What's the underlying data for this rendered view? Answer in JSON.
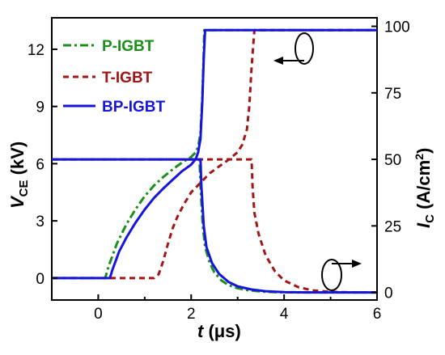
{
  "chart_data": {
    "type": "line",
    "x_label": {
      "symbol": "t",
      "unit": " (μs)"
    },
    "y_left_label": {
      "symbol": "V",
      "subscript": "CE",
      "unit": " (kV)"
    },
    "y_right_label": {
      "symbol": "I",
      "subscript": "C",
      "unit": " (A/cm",
      "superscript": "2",
      "close": ")"
    },
    "x_range": [
      -1,
      6
    ],
    "y_left_range": [
      -1.15,
      13.65
    ],
    "y_right_range": [
      -2.85,
      103.2
    ],
    "x_ticks": [
      0,
      2,
      4,
      6
    ],
    "x_tick_labels": [
      "0",
      "2",
      "4",
      "6"
    ],
    "y_left_ticks": [
      0,
      3,
      6,
      9,
      12
    ],
    "y_left_tick_labels": [
      "0",
      "3",
      "6",
      "9",
      "12"
    ],
    "y_right_ticks": [
      0,
      25,
      50,
      75,
      100
    ],
    "y_right_tick_labels": [
      "0",
      "25",
      "50",
      "75",
      "100"
    ],
    "grid": false,
    "legend_position": "top-left",
    "series": [
      {
        "name": "P-IGBT",
        "color": "#1a8f1a",
        "dash": "dashdot",
        "vce": [
          [
            -1,
            0
          ],
          [
            0.15,
            0
          ],
          [
            0.22,
            0.6
          ],
          [
            0.4,
            1.8
          ],
          [
            0.6,
            2.8
          ],
          [
            0.8,
            3.6
          ],
          [
            1.0,
            4.3
          ],
          [
            1.2,
            4.85
          ],
          [
            1.4,
            5.3
          ],
          [
            1.6,
            5.7
          ],
          [
            1.8,
            6.05
          ],
          [
            2.0,
            6.35
          ],
          [
            2.1,
            6.6
          ],
          [
            2.15,
            6.9
          ],
          [
            2.2,
            7.6
          ],
          [
            2.24,
            9.5
          ],
          [
            2.27,
            11.8
          ],
          [
            2.28,
            13.0
          ],
          [
            6,
            13.0
          ]
        ],
        "ic": [
          [
            -1,
            50
          ],
          [
            2.18,
            50
          ],
          [
            2.2,
            40
          ],
          [
            2.25,
            25
          ],
          [
            2.3,
            17
          ],
          [
            2.4,
            11
          ],
          [
            2.5,
            7.5
          ],
          [
            2.65,
            4.5
          ],
          [
            2.8,
            2.8
          ],
          [
            3.0,
            1.6
          ],
          [
            3.2,
            0.9
          ],
          [
            3.5,
            0.35
          ],
          [
            3.8,
            0.1
          ],
          [
            4.3,
            0
          ],
          [
            6,
            0
          ]
        ]
      },
      {
        "name": "T-IGBT",
        "color": "#a31515",
        "dash": "dashed",
        "vce": [
          [
            -1,
            0
          ],
          [
            1.2,
            0
          ],
          [
            1.3,
            0.2
          ],
          [
            1.4,
            0.9
          ],
          [
            1.5,
            1.8
          ],
          [
            1.6,
            2.6
          ],
          [
            1.7,
            3.2
          ],
          [
            1.85,
            3.9
          ],
          [
            2.0,
            4.5
          ],
          [
            2.2,
            5.0
          ],
          [
            2.4,
            5.5
          ],
          [
            2.6,
            5.85
          ],
          [
            2.8,
            6.2
          ],
          [
            3.0,
            6.6
          ],
          [
            3.1,
            7.0
          ],
          [
            3.2,
            7.8
          ],
          [
            3.25,
            9.0
          ],
          [
            3.3,
            11.0
          ],
          [
            3.36,
            13.0
          ],
          [
            6,
            13.0
          ]
        ],
        "ic": [
          [
            -1,
            50
          ],
          [
            3.3,
            50
          ],
          [
            3.32,
            40
          ],
          [
            3.36,
            30
          ],
          [
            3.45,
            22
          ],
          [
            3.6,
            14
          ],
          [
            3.8,
            8
          ],
          [
            4.0,
            4.5
          ],
          [
            4.3,
            2.0
          ],
          [
            4.6,
            0.8
          ],
          [
            5.0,
            0.2
          ],
          [
            5.5,
            0
          ],
          [
            6,
            0
          ]
        ]
      },
      {
        "name": "BP-IGBT",
        "color": "#1515dd",
        "dash": "solid",
        "vce": [
          [
            -1,
            0
          ],
          [
            0.25,
            0
          ],
          [
            0.3,
            0.4
          ],
          [
            0.45,
            1.4
          ],
          [
            0.6,
            2.1
          ],
          [
            0.8,
            2.9
          ],
          [
            1.0,
            3.6
          ],
          [
            1.2,
            4.2
          ],
          [
            1.4,
            4.7
          ],
          [
            1.6,
            5.15
          ],
          [
            1.8,
            5.6
          ],
          [
            2.0,
            5.95
          ],
          [
            2.1,
            6.25
          ],
          [
            2.15,
            6.6
          ],
          [
            2.2,
            7.3
          ],
          [
            2.24,
            9.3
          ],
          [
            2.27,
            11.5
          ],
          [
            2.3,
            13.0
          ],
          [
            6,
            13.0
          ]
        ],
        "ic": [
          [
            -1,
            50
          ],
          [
            2.2,
            50
          ],
          [
            2.22,
            40
          ],
          [
            2.27,
            25
          ],
          [
            2.33,
            17
          ],
          [
            2.45,
            11
          ],
          [
            2.6,
            7.0
          ],
          [
            2.8,
            4.0
          ],
          [
            3.0,
            2.3
          ],
          [
            3.3,
            1.1
          ],
          [
            3.6,
            0.45
          ],
          [
            4.0,
            0.12
          ],
          [
            4.5,
            0
          ],
          [
            6,
            0
          ]
        ]
      }
    ]
  }
}
